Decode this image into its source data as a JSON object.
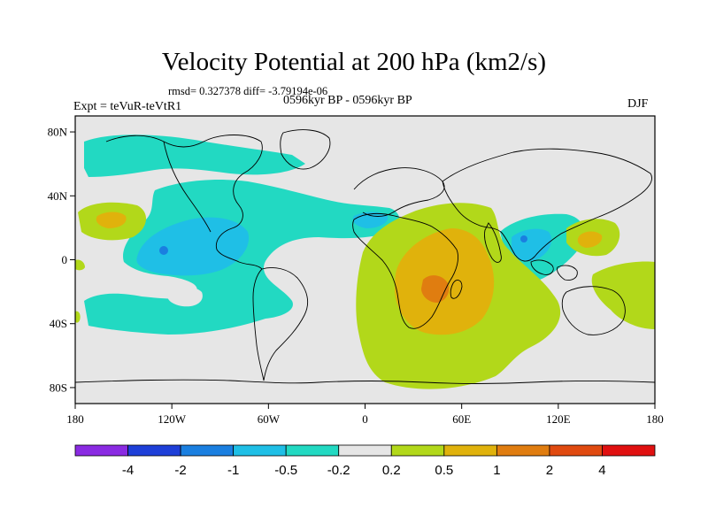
{
  "title": "Velocity Potential at 200 hPa (km2/s)",
  "stats": "rmsd= 0.327378 diff= -3.79194e-06",
  "experiment": "Expt = teVuR-teVtR1",
  "period": "0596kyr BP - 0596kyr BP",
  "season": "DJF",
  "map": {
    "projection": "cylindrical-equidistant",
    "lon_range": [
      -180,
      180
    ],
    "lat_range": [
      -90,
      90
    ],
    "background_color": "#e6e6e6",
    "coast_color": "#000000",
    "x_ticks": [
      {
        "lon": -180,
        "label": "180"
      },
      {
        "lon": -120,
        "label": "120W"
      },
      {
        "lon": -60,
        "label": "60W"
      },
      {
        "lon": 0,
        "label": "0"
      },
      {
        "lon": 60,
        "label": "60E"
      },
      {
        "lon": 120,
        "label": "120E"
      },
      {
        "lon": 180,
        "label": "180"
      }
    ],
    "y_ticks": [
      {
        "lat": 80,
        "label": "80N"
      },
      {
        "lat": 40,
        "label": "40N"
      },
      {
        "lat": 0,
        "label": "0"
      },
      {
        "lat": -40,
        "label": "40S"
      },
      {
        "lat": -80,
        "label": "80S"
      }
    ]
  },
  "colorbar": {
    "colors": [
      "#8a2be2",
      "#1e3fd8",
      "#1a7fe0",
      "#1fbfe6",
      "#22d9c2",
      "#e6e6e6",
      "#b2d81a",
      "#e0b20c",
      "#e07d10",
      "#e04a10",
      "#e01010"
    ],
    "labels": [
      "-4",
      "-2",
      "-1",
      "-0.5",
      "-0.2",
      "0.2",
      "0.5",
      "1",
      "2",
      "4"
    ]
  },
  "contour_levels": {
    "negative_weak": "#22d9c2",
    "negative_mid": "#1fbfe6",
    "positive_weak": "#b2d81a",
    "positive_mid": "#e0b20c",
    "positive_strong": "#e07d10"
  }
}
